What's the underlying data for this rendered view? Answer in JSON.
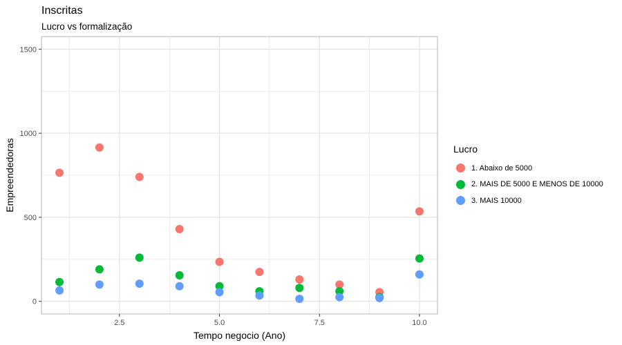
{
  "chart_data": {
    "type": "scatter",
    "title": "Inscritas",
    "subtitle": "Lucro vs formalização",
    "xlabel": "Tempo negocio (Ano)",
    "ylabel": "Empreendedoras",
    "xlim": [
      0.55,
      10.45
    ],
    "ylim": [
      -75,
      1575
    ],
    "x_ticks": [
      2.5,
      5.0,
      7.5,
      10.0
    ],
    "x_tick_labels": [
      "2.5",
      "5.0",
      "7.5",
      "10.0"
    ],
    "y_ticks": [
      0,
      500,
      1000,
      1500
    ],
    "y_tick_labels": [
      "0",
      "500",
      "1000",
      "1500"
    ],
    "grid": true,
    "legend": {
      "title": "Lucro",
      "position": "right"
    },
    "series": [
      {
        "name": "1. Abaixo de 5000",
        "color": "#F8766D",
        "x": [
          1,
          2,
          3,
          4,
          5,
          6,
          7,
          8,
          9,
          10
        ],
        "y": [
          765,
          915,
          740,
          430,
          235,
          175,
          130,
          100,
          55,
          535
        ]
      },
      {
        "name": "2. MAIS DE 5000 E MENOS DE 10000",
        "color": "#00BA38",
        "x": [
          1,
          2,
          3,
          4,
          5,
          6,
          7,
          8,
          9,
          10
        ],
        "y": [
          115,
          190,
          260,
          155,
          90,
          60,
          80,
          60,
          25,
          255
        ]
      },
      {
        "name": "3. MAIS 10000",
        "color": "#619CFF",
        "x": [
          1,
          2,
          3,
          4,
          5,
          6,
          7,
          8,
          9,
          10
        ],
        "y": [
          65,
          100,
          105,
          90,
          55,
          35,
          15,
          25,
          20,
          160
        ]
      }
    ]
  }
}
